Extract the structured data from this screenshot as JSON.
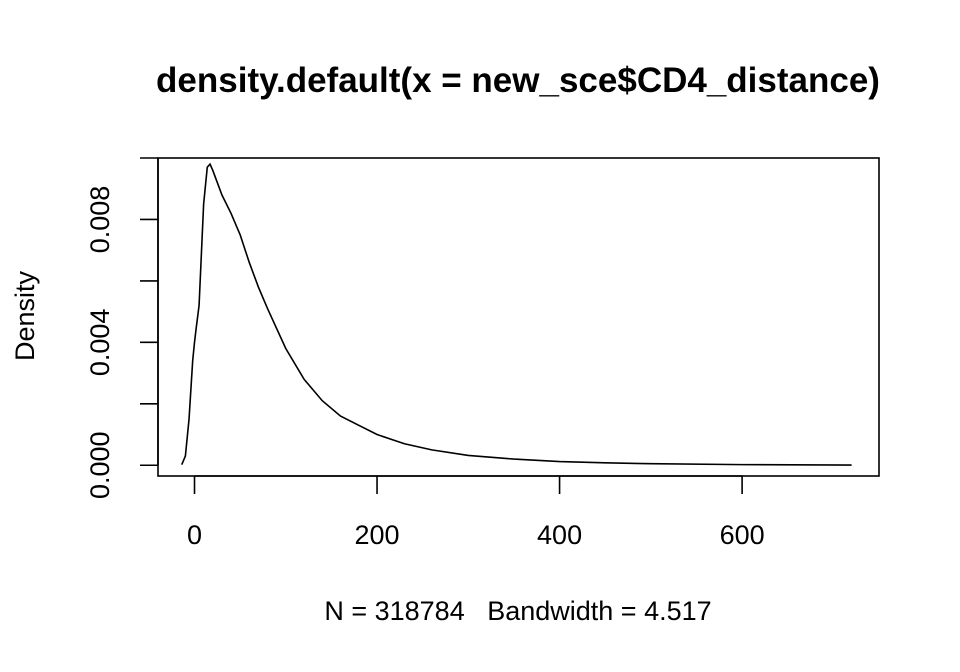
{
  "chart_data": {
    "type": "line",
    "title": "density.default(x = new_sce$CD4_distance)",
    "xlabel": "N = 318784   Bandwidth = 4.517",
    "ylabel": "Density",
    "xlim": [
      -40,
      750
    ],
    "ylim": [
      -0.00035,
      0.01
    ],
    "x_ticks": [
      0,
      200,
      400,
      600
    ],
    "x_tick_labels": [
      "0",
      "200",
      "400",
      "600"
    ],
    "y_ticks": [
      0.0,
      0.002,
      0.004,
      0.006,
      0.008,
      0.01
    ],
    "y_tick_labels": [
      "0.000",
      "",
      "0.004",
      "",
      "0.008",
      ""
    ],
    "grid": false,
    "series": [
      {
        "x": [
          -14,
          -10,
          -6,
          -2,
          0,
          2,
          5,
          10,
          14,
          17,
          20,
          25,
          30,
          40,
          50,
          60,
          70,
          80,
          100,
          120,
          140,
          160,
          180,
          200,
          230,
          260,
          300,
          350,
          400,
          450,
          500,
          600,
          720
        ],
        "y": [
          2e-05,
          0.0003,
          0.0015,
          0.0034,
          0.004,
          0.0045,
          0.0052,
          0.0085,
          0.0097,
          0.0098,
          0.0096,
          0.0092,
          0.0088,
          0.0082,
          0.0075,
          0.0066,
          0.0058,
          0.0051,
          0.0038,
          0.0028,
          0.0021,
          0.0016,
          0.0013,
          0.001,
          0.0007,
          0.0005,
          0.00032,
          0.0002,
          0.00012,
          8e-05,
          5e-05,
          2e-05,
          5e-06
        ],
        "color": "#000000"
      }
    ]
  }
}
